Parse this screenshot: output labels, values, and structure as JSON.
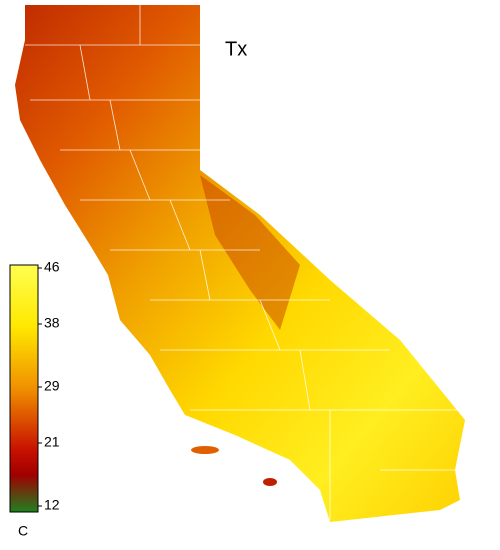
{
  "map": {
    "title": "Tx",
    "unit": "C",
    "colorbar": {
      "lim": [
        12,
        46
      ],
      "ticks": [
        46,
        38,
        29,
        21,
        12
      ]
    }
  }
}
